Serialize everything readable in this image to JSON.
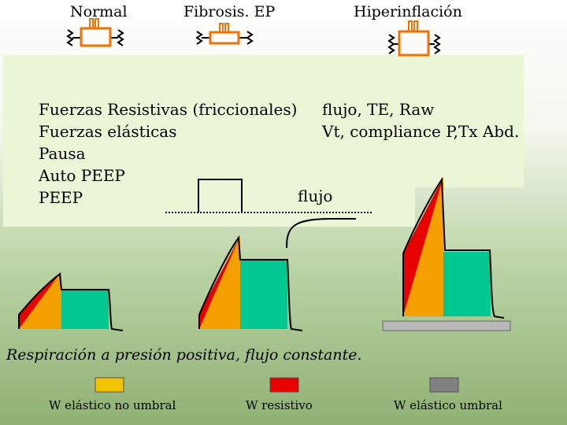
{
  "header": {
    "normal": "Normal",
    "fibrosis": "Fibrosis. EP",
    "hiperinflacion": "Hiperinflación"
  },
  "left_list": [
    "Fuerzas Resistivas (friccionales)",
    "Fuerzas elásticas",
    "Pausa",
    "Auto PEEP",
    "PEEP"
  ],
  "right_list": [
    "flujo, TE, Raw",
    "Vt, compliance P,Tx Abd."
  ],
  "flow_label": "flujo",
  "caption": "Respiración a presión positiva, flujo constante.",
  "legend": [
    {
      "label": "W elástico no umbral",
      "color": "#f5c400"
    },
    {
      "label": "W resistivo",
      "color": "#e80000"
    },
    {
      "label": "W elástico umbral",
      "color": "#808080"
    }
  ],
  "colors": {
    "resistive": "#e80000",
    "elastic": "#f4a000",
    "pause": "#00c890",
    "threshold": "#b8b8b8",
    "lung_stroke": "#000000",
    "lung_fill": "#f47000"
  },
  "icons": [
    "lung-normal-icon",
    "lung-fibrosis-icon",
    "lung-hyperinflation-icon"
  ]
}
